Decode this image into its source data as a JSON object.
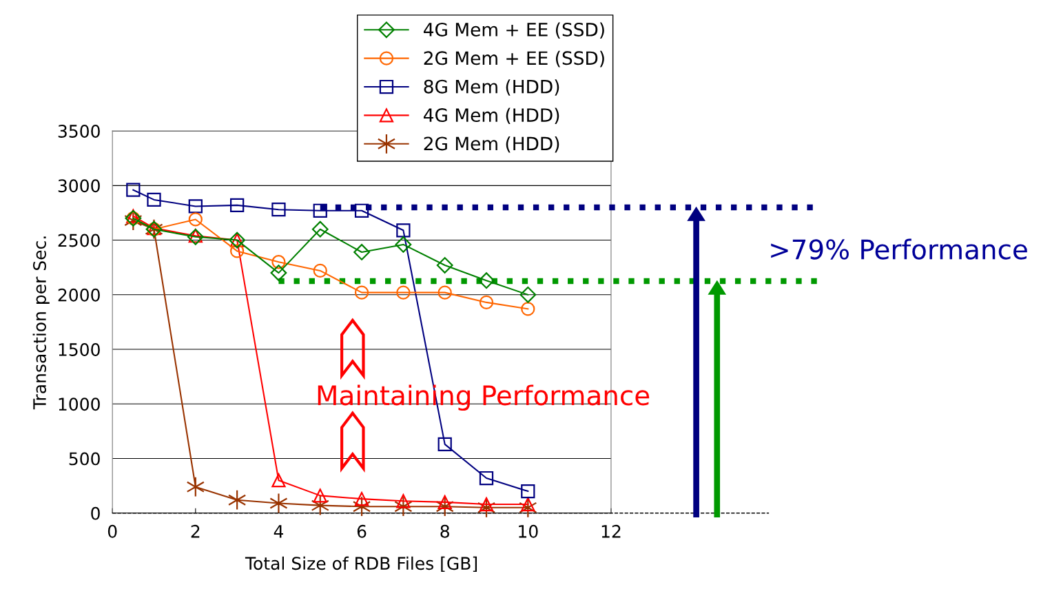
{
  "chart_data": {
    "type": "line",
    "xlabel": "Total Size of RDB Files [GB]",
    "ylabel": "Transaction per Sec.",
    "x": [
      0.5,
      1,
      2,
      3,
      4,
      5,
      6,
      7,
      8,
      9,
      10
    ],
    "series": [
      {
        "name": "4G Mem + EE (SSD)",
        "color": "#008000",
        "marker": "diamond",
        "values": [
          2700,
          2600,
          2530,
          2500,
          2200,
          2600,
          2390,
          2460,
          2270,
          2130,
          2000
        ]
      },
      {
        "name": "2G Mem + EE (SSD)",
        "color": "#ff6600",
        "marker": "circle",
        "values": [
          2700,
          2600,
          2690,
          2400,
          2300,
          2220,
          2020,
          2020,
          2020,
          1930,
          1870
        ]
      },
      {
        "name": "8G Mem (HDD)",
        "color": "#000080",
        "marker": "square",
        "values": [
          2960,
          2870,
          2810,
          2820,
          2780,
          2770,
          2770,
          2590,
          630,
          320,
          200
        ]
      },
      {
        "name": "4G Mem (HDD)",
        "color": "#ff0000",
        "marker": "triangle",
        "values": [
          2720,
          2610,
          2540,
          2500,
          300,
          160,
          130,
          110,
          100,
          80,
          80
        ]
      },
      {
        "name": "2G Mem (HDD)",
        "color": "#993300",
        "marker": "cross",
        "values": [
          2680,
          2600,
          240,
          120,
          90,
          70,
          60,
          60,
          60,
          50,
          50
        ]
      }
    ],
    "xlim": [
      0,
      12
    ],
    "xticks": [
      0,
      2,
      4,
      6,
      8,
      10,
      12
    ],
    "ylim": [
      0,
      3500
    ],
    "yticks": [
      0,
      500,
      1000,
      1500,
      2000,
      2500,
      3000,
      3500
    ],
    "grid": "y",
    "legend": "top",
    "ref_lines": [
      {
        "axis": "y",
        "value": 2800,
        "color": "#000080",
        "line_style": "dotted"
      },
      {
        "axis": "y",
        "value": 2125,
        "color": "#009900",
        "line_style": "dotted"
      },
      {
        "axis": "y",
        "value": 0,
        "color": "#000000",
        "line_style": "dashed"
      }
    ],
    "annotations": [
      "Maintaining Performance",
      ">79% Performance"
    ]
  }
}
